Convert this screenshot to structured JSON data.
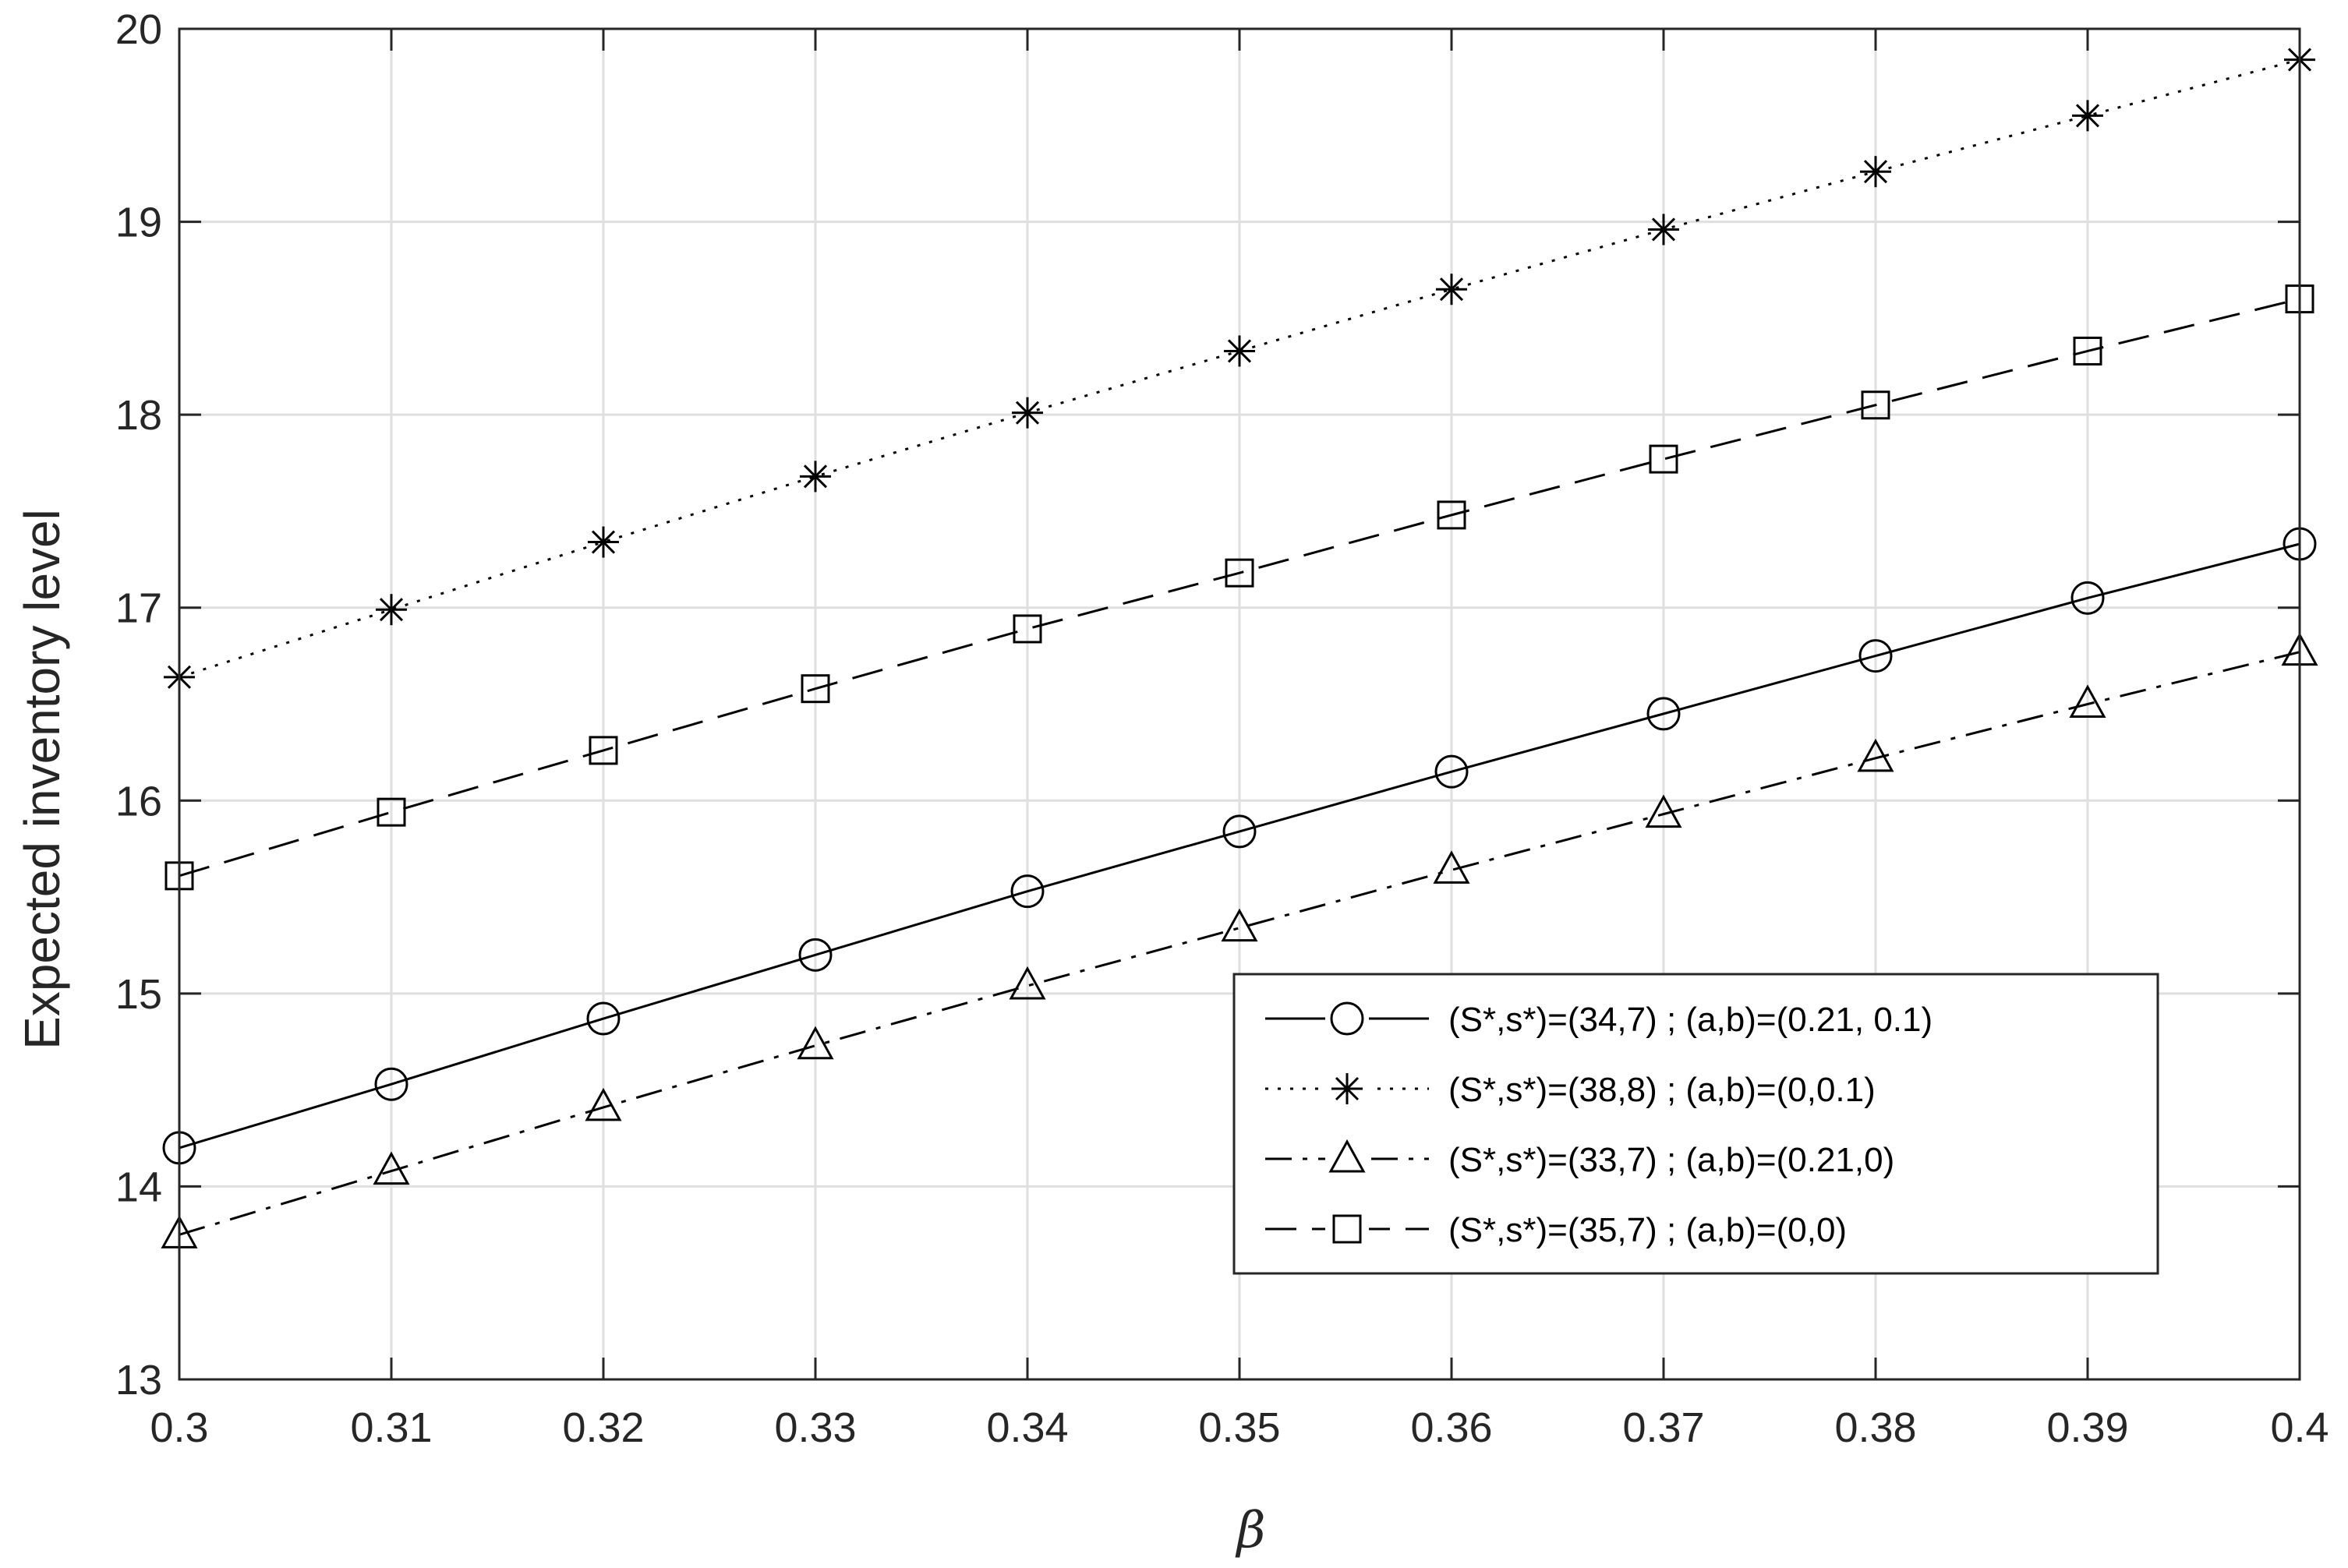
{
  "chart_data": {
    "type": "line",
    "xlabel": "β",
    "ylabel": "Expected inventory level",
    "xlim": [
      0.3,
      0.4
    ],
    "ylim": [
      13,
      20
    ],
    "x_ticks": [
      "0.3",
      "0.31",
      "0.32",
      "0.33",
      "0.34",
      "0.35",
      "0.36",
      "0.37",
      "0.38",
      "0.39",
      "0.4"
    ],
    "y_ticks": [
      "13",
      "14",
      "15",
      "16",
      "17",
      "18",
      "19",
      "20"
    ],
    "grid": true,
    "legend_position": "lower-right",
    "x": [
      0.3,
      0.31,
      0.32,
      0.33,
      0.34,
      0.35,
      0.36,
      0.37,
      0.38,
      0.39,
      0.4
    ],
    "series": [
      {
        "name": "(S*,s*)=(34,7) ; (a,b)=(0.21, 0.1)",
        "marker": "circle",
        "line_style": "solid",
        "values": [
          14.2,
          14.53,
          14.87,
          15.2,
          15.53,
          15.84,
          16.15,
          16.45,
          16.75,
          17.05,
          17.33
        ]
      },
      {
        "name": "(S*,s*)=(38,8) ; (a,b)=(0,0.1)",
        "marker": "asterisk",
        "line_style": "dotted",
        "values": [
          16.64,
          16.99,
          17.34,
          17.68,
          18.01,
          18.33,
          18.65,
          18.96,
          19.26,
          19.55,
          19.84
        ]
      },
      {
        "name": "(S*,s*)=(33,7) ; (a,b)=(0.21,0)",
        "marker": "triangle",
        "line_style": "dashdot",
        "values": [
          13.75,
          14.08,
          14.41,
          14.73,
          15.04,
          15.34,
          15.64,
          15.93,
          16.22,
          16.5,
          16.77
        ]
      },
      {
        "name": "(S*,s*)=(35,7) ; (a,b)=(0,0)",
        "marker": "square",
        "line_style": "dashed",
        "values": [
          15.61,
          15.94,
          16.26,
          16.58,
          16.89,
          17.18,
          17.48,
          17.77,
          18.05,
          18.33,
          18.6
        ]
      }
    ]
  }
}
